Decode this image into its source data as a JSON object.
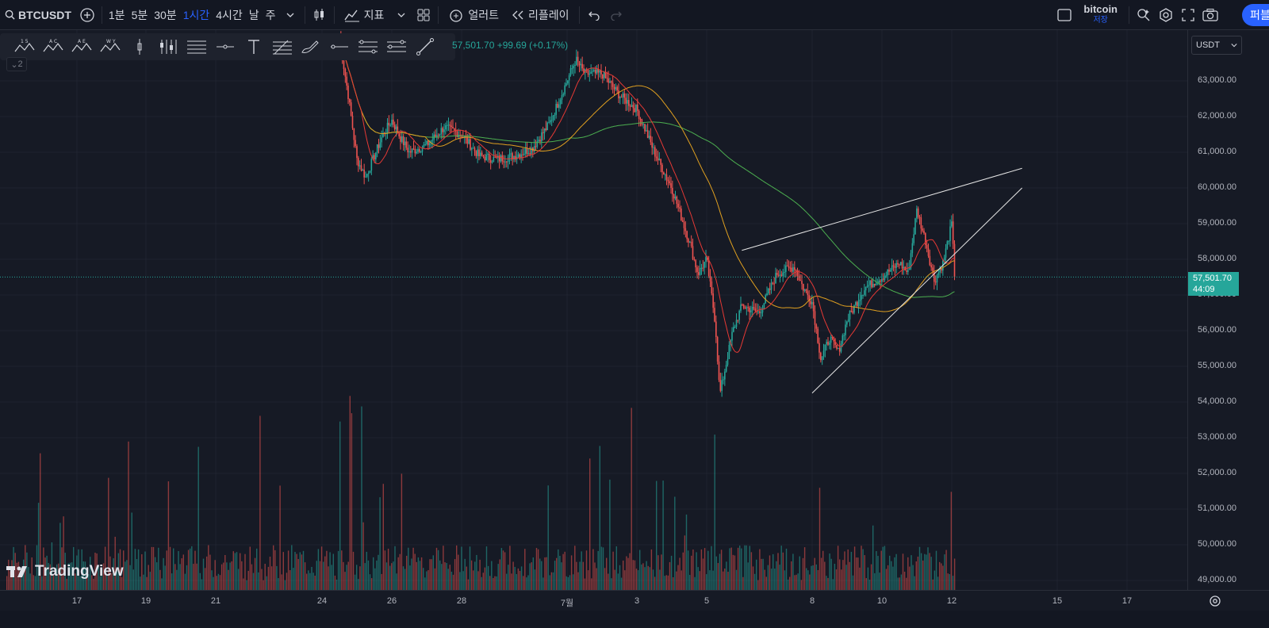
{
  "toolbar": {
    "symbol": "BTCUSDT",
    "timeframes": [
      "1분",
      "5분",
      "30분",
      "1시간",
      "4시간",
      "날",
      "주"
    ],
    "active_timeframe": "1시간",
    "indicators_label": "지표",
    "alert_label": "얼러트",
    "replay_label": "리플레이",
    "layout_name": "bitcoin",
    "layout_status": "저장",
    "publish_label": "퍼블"
  },
  "drawing_tools": [
    "pattern-15-icon",
    "pattern-ac-icon",
    "pattern-ae-icon",
    "pattern-wy-icon",
    "cursor-tick-icon",
    "bars-icon",
    "lines-icon",
    "horizontal-ray-icon",
    "text-icon",
    "fib-icon",
    "brush-icon",
    "ray-icon",
    "parallel-lines-icon",
    "regression-icon",
    "trend-line-icon"
  ],
  "legend": {
    "price": "57,501.70",
    "change": "+99.69 (+0.17%)",
    "collapse_label": "2"
  },
  "price_scale": {
    "currency": "USDT",
    "labels": [
      "63,000.00",
      "62,000.00",
      "61,000.00",
      "60,000.00",
      "59,000.00",
      "58,000.00",
      "57,000.00",
      "56,000.00",
      "55,000.00",
      "54,000.00",
      "53,000.00",
      "52,000.00",
      "51,000.00",
      "50,000.00",
      "49,000.00"
    ],
    "last_price": "57,501.70",
    "countdown": "44:09"
  },
  "time_axis": {
    "labels": [
      "17",
      "19",
      "21",
      "24",
      "26",
      "28",
      "7월",
      "3",
      "5",
      "8",
      "10",
      "12",
      "15",
      "17"
    ]
  },
  "branding": {
    "logo_text": "TradingView"
  },
  "colors": {
    "background": "#161a25",
    "up": "#26a69a",
    "down": "#ef5350",
    "ma_fast": "#e53935",
    "ma_mid": "#e0a020",
    "ma_slow": "#4caf50",
    "accent": "#2962ff"
  },
  "chart_data": {
    "type": "candlestick",
    "symbol": "BTCUSDT",
    "interval": "1h",
    "ylim": [
      48800,
      63900
    ],
    "volume_panel": true,
    "trendlines": [
      {
        "from": [
          "Jul 6",
          58250
        ],
        "to": [
          "Jul 14",
          60550
        ]
      },
      {
        "from": [
          "Jul 8",
          54250
        ],
        "to": [
          "Jul 14",
          60000
        ]
      }
    ],
    "moving_averages": [
      "fast",
      "mid",
      "slow"
    ],
    "close_path": [
      [
        "Jun 24 12h",
        64200
      ],
      [
        "Jun 24 18h",
        62600
      ],
      [
        "Jun 25 00h",
        60800
      ],
      [
        "Jun 25 06h",
        60300
      ],
      [
        "Jun 25 12h",
        60900
      ],
      [
        "Jun 25 18h",
        61500
      ],
      [
        "Jun 26 00h",
        61900
      ],
      [
        "Jun 26 06h",
        61400
      ],
      [
        "Jun 26 12h",
        61000
      ],
      [
        "Jun 27 00h",
        61200
      ],
      [
        "Jun 27 12h",
        61700
      ],
      [
        "Jun 28 00h",
        61500
      ],
      [
        "Jun 28 12h",
        60900
      ],
      [
        "Jun 29 00h",
        60800
      ],
      [
        "Jun 29 12h",
        60900
      ],
      [
        "Jun 30 00h",
        61100
      ],
      [
        "Jun 30 12h",
        61800
      ],
      [
        "Jul 1 00h",
        63000
      ],
      [
        "Jul 1 06h",
        63600
      ],
      [
        "Jul 1 12h",
        63200
      ],
      [
        "Jul 2 00h",
        63200
      ],
      [
        "Jul 2 12h",
        62600
      ],
      [
        "Jul 3 00h",
        62200
      ],
      [
        "Jul 3 12h",
        61000
      ],
      [
        "Jul 4 00h",
        60000
      ],
      [
        "Jul 4 12h",
        58500
      ],
      [
        "Jul 4 18h",
        57600
      ],
      [
        "Jul 5 00h",
        58000
      ],
      [
        "Jul 5 06h",
        56200
      ],
      [
        "Jul 5 09h",
        54200
      ],
      [
        "Jul 5 18h",
        56000
      ],
      [
        "Jul 6 00h",
        56700
      ],
      [
        "Jul 6 12h",
        56500
      ],
      [
        "Jul 7 00h",
        57600
      ],
      [
        "Jul 7 12h",
        57800
      ],
      [
        "Jul 7 18h",
        57200
      ],
      [
        "Jul 8 00h",
        56800
      ],
      [
        "Jul 8 06h",
        55200
      ],
      [
        "Jul 8 12h",
        55800
      ],
      [
        "Jul 8 18h",
        55400
      ],
      [
        "Jul 9 00h",
        56300
      ],
      [
        "Jul 9 12h",
        57200
      ],
      [
        "Jul 10 00h",
        57500
      ],
      [
        "Jul 10 12h",
        57900
      ],
      [
        "Jul 10 18h",
        57600
      ],
      [
        "Jul 11 00h",
        59400
      ],
      [
        "Jul 11 06h",
        58500
      ],
      [
        "Jul 11 12h",
        57400
      ],
      [
        "Jul 11 18h",
        57900
      ],
      [
        "Jul 12 00h",
        59000
      ],
      [
        "Jul 12 02h",
        57500
      ]
    ]
  }
}
